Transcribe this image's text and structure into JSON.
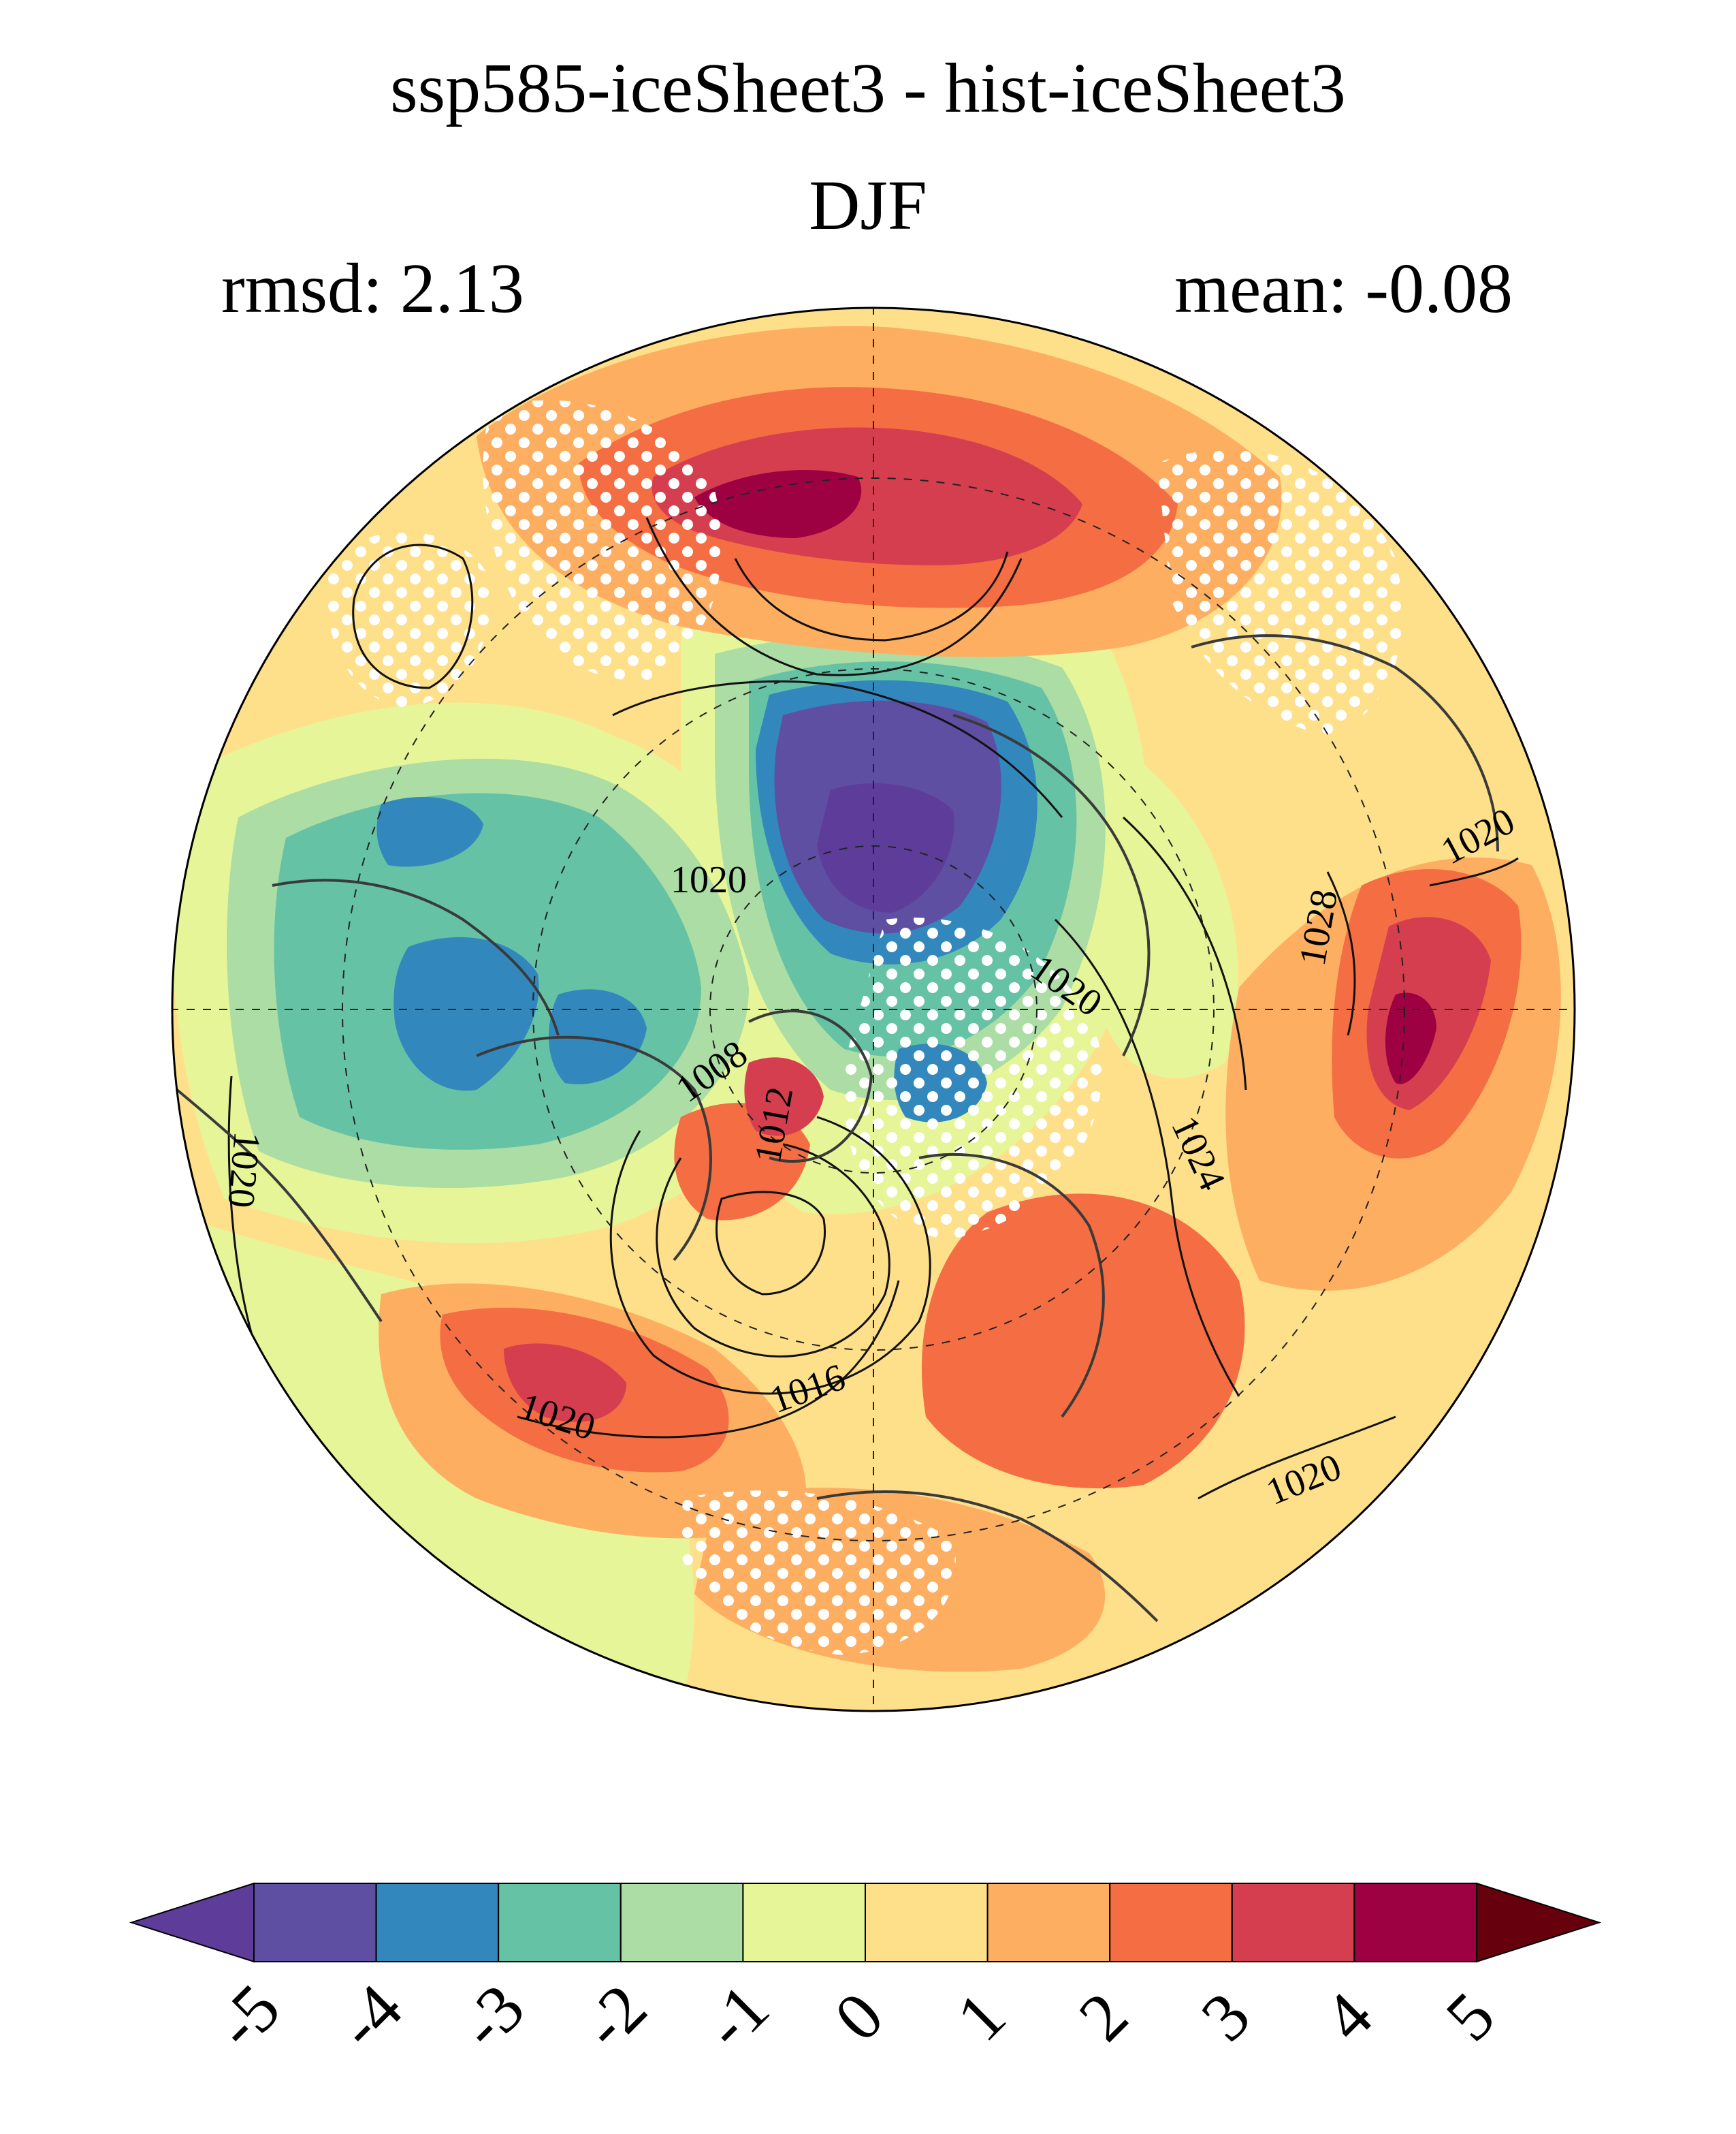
{
  "title": {
    "line1": "ssp585-iceSheet3 - hist-iceSheet3",
    "line2": "DJF"
  },
  "stats": {
    "rmsd_text": "rmsd: 2.13",
    "mean_text": "mean: -0.08"
  },
  "map": {
    "projection": "north-polar-stereographic",
    "field": "sea level pressure difference (filled) with control SLP contours (lines)",
    "contour_labels": [
      "1020",
      "1020",
      "1028",
      "1020",
      "1024",
      "1008",
      "1012",
      "1020",
      "1016",
      "1020",
      "1020"
    ],
    "stippling": "white dots mark regions",
    "colors": {
      "coastline": "#3a3a3a",
      "contour": "#111111",
      "graticule": "#222222",
      "stipple": "#ffffff"
    }
  },
  "colorbar": {
    "ticks": [
      "-5",
      "-4",
      "-3",
      "-2",
      "-1",
      "0",
      "1",
      "2",
      "3",
      "4",
      "5"
    ],
    "colors": [
      "#5e3c99",
      "#5e4fa2",
      "#3288bd",
      "#66c2a5",
      "#abdda4",
      "#e6f598",
      "#fee08b",
      "#fdae61",
      "#f46d43",
      "#d53e4f",
      "#9e0142",
      "#67000d"
    ]
  }
}
